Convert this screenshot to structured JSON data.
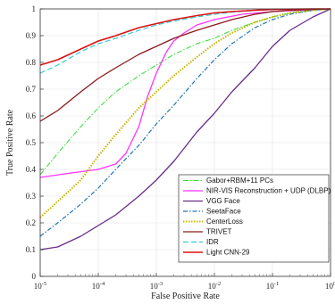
{
  "chart_data": {
    "type": "line",
    "title": "",
    "xlabel": "False Positive Rate",
    "ylabel": "True Positive Rate",
    "xscale": "log",
    "xlim": [
      1e-05,
      1
    ],
    "ylim": [
      0,
      1
    ],
    "grid": true,
    "legend_position": "bottom-right",
    "x_ticks": [
      {
        "v": 1e-05,
        "base": "10",
        "exp": "-5"
      },
      {
        "v": 0.0001,
        "base": "10",
        "exp": "-4"
      },
      {
        "v": 0.001,
        "base": "10",
        "exp": "-3"
      },
      {
        "v": 0.01,
        "base": "10",
        "exp": "-2"
      },
      {
        "v": 0.1,
        "base": "10",
        "exp": "-1"
      },
      {
        "v": 1,
        "base": "10",
        "exp": "0"
      }
    ],
    "y_ticks": [
      {
        "v": 0,
        "label": "0"
      },
      {
        "v": 0.1,
        "label": "0.1"
      },
      {
        "v": 0.2,
        "label": "0.2"
      },
      {
        "v": 0.3,
        "label": "0.3"
      },
      {
        "v": 0.4,
        "label": "0.4"
      },
      {
        "v": 0.5,
        "label": "0.5"
      },
      {
        "v": 0.6,
        "label": "0.6"
      },
      {
        "v": 0.7,
        "label": "0.7"
      },
      {
        "v": 0.8,
        "label": "0.8"
      },
      {
        "v": 0.9,
        "label": "0.9"
      },
      {
        "v": 1,
        "label": "1"
      }
    ],
    "series": [
      {
        "name": "Gabor+RBM+11 PCs",
        "color": "#33dd33",
        "dash": "6,2,1.5,2",
        "width": 1,
        "x": [
          1e-05,
          2e-05,
          5e-05,
          0.0001,
          0.0002,
          0.0005,
          0.001,
          0.002,
          0.005,
          0.01,
          0.02,
          0.05,
          0.1,
          0.2,
          0.5,
          1
        ],
        "y": [
          0.38,
          0.46,
          0.56,
          0.63,
          0.69,
          0.75,
          0.79,
          0.83,
          0.87,
          0.89,
          0.92,
          0.95,
          0.97,
          0.985,
          0.995,
          1
        ]
      },
      {
        "name": "NIR-VIS Reconstruction + UDP (DLBP)",
        "color": "#ff33ff",
        "dash": "",
        "width": 1.3,
        "x": [
          1e-05,
          3e-05,
          0.0001,
          0.0002,
          0.0003,
          0.0005,
          0.0007,
          0.001,
          0.0015,
          0.002,
          0.003,
          0.005,
          0.01,
          0.03,
          0.1,
          1
        ],
        "y": [
          0.37,
          0.385,
          0.4,
          0.42,
          0.46,
          0.56,
          0.67,
          0.76,
          0.84,
          0.88,
          0.91,
          0.94,
          0.96,
          0.98,
          0.99,
          1
        ]
      },
      {
        "name": "VGG Face",
        "color": "#6a2c8a",
        "dash": "",
        "width": 1.3,
        "x": [
          1e-05,
          2e-05,
          5e-05,
          0.0001,
          0.0002,
          0.0005,
          0.001,
          0.002,
          0.005,
          0.01,
          0.02,
          0.05,
          0.1,
          0.2,
          0.5,
          1
        ],
        "y": [
          0.1,
          0.11,
          0.15,
          0.19,
          0.23,
          0.3,
          0.36,
          0.43,
          0.54,
          0.61,
          0.69,
          0.78,
          0.86,
          0.92,
          0.97,
          1
        ]
      },
      {
        "name": "SeetaFace",
        "color": "#1f77b4",
        "dash": "5,2,1.5,2",
        "width": 1.2,
        "x": [
          1e-05,
          2e-05,
          5e-05,
          0.0001,
          0.0002,
          0.0005,
          0.001,
          0.002,
          0.005,
          0.01,
          0.02,
          0.05,
          0.1,
          0.2,
          0.5,
          1
        ],
        "y": [
          0.15,
          0.2,
          0.27,
          0.33,
          0.4,
          0.49,
          0.57,
          0.64,
          0.74,
          0.81,
          0.87,
          0.93,
          0.96,
          0.98,
          0.995,
          1
        ]
      },
      {
        "name": "CenterLoss",
        "color": "#c8b400",
        "dash": "1.5,1.5",
        "width": 2,
        "x": [
          1e-05,
          2e-05,
          5e-05,
          0.0001,
          0.0002,
          0.0005,
          0.001,
          0.002,
          0.005,
          0.01,
          0.02,
          0.05,
          0.1,
          0.2,
          0.5,
          1
        ],
        "y": [
          0.22,
          0.28,
          0.36,
          0.45,
          0.53,
          0.63,
          0.69,
          0.75,
          0.82,
          0.87,
          0.91,
          0.95,
          0.97,
          0.985,
          0.995,
          1
        ]
      },
      {
        "name": "TRIVET",
        "color": "#8b1a1a",
        "dash": "",
        "width": 1.3,
        "x": [
          1e-05,
          2e-05,
          5e-05,
          0.0001,
          0.0002,
          0.0005,
          0.001,
          0.002,
          0.005,
          0.01,
          0.02,
          0.05,
          0.1,
          0.2,
          0.5,
          1
        ],
        "y": [
          0.58,
          0.62,
          0.69,
          0.74,
          0.78,
          0.83,
          0.86,
          0.89,
          0.92,
          0.94,
          0.96,
          0.98,
          0.99,
          0.995,
          0.998,
          1
        ]
      },
      {
        "name": "IDR",
        "color": "#33cccc",
        "dash": "6,3",
        "width": 1.2,
        "x": [
          1e-05,
          2e-05,
          5e-05,
          0.0001,
          0.0002,
          0.0005,
          0.001,
          0.002,
          0.005,
          0.01,
          0.02,
          0.05,
          0.1,
          0.2,
          0.5,
          1
        ],
        "y": [
          0.76,
          0.79,
          0.84,
          0.87,
          0.89,
          0.92,
          0.94,
          0.955,
          0.97,
          0.98,
          0.988,
          0.994,
          0.997,
          0.999,
          1,
          1
        ]
      },
      {
        "name": "Light CNN-29",
        "color": "#dd1111",
        "dash": "",
        "width": 1.6,
        "x": [
          1e-05,
          2e-05,
          5e-05,
          0.0001,
          0.0002,
          0.0005,
          0.001,
          0.002,
          0.005,
          0.01,
          0.02,
          0.05,
          0.1,
          0.2,
          0.5,
          1
        ],
        "y": [
          0.79,
          0.81,
          0.85,
          0.88,
          0.9,
          0.93,
          0.945,
          0.96,
          0.975,
          0.985,
          0.99,
          0.995,
          0.998,
          0.999,
          1,
          1
        ]
      }
    ]
  }
}
